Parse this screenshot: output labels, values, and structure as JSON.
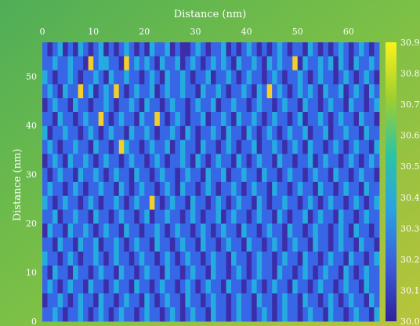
{
  "chart_data": {
    "type": "heatmap",
    "title": "",
    "xlabel": "Distance (nm)",
    "ylabel": "Distance (nm)",
    "xticks": [
      "0",
      "10",
      "20",
      "30",
      "40",
      "50",
      "60"
    ],
    "yticks": [
      "0",
      "10",
      "20",
      "30",
      "40",
      "50"
    ],
    "xlim": [
      0,
      66
    ],
    "ylim": [
      0,
      57
    ],
    "colorbar_ticks": [
      "30.0",
      "30.1",
      "30.2",
      "30.3",
      "30.4",
      "30.5",
      "30.6",
      "30.7",
      "30.8",
      "30.9"
    ],
    "colorbar_range": [
      30.0,
      30.9
    ],
    "colormap": "viridis-like (dark blue to yellow)",
    "grid": false,
    "values": [
      [
        1,
        0,
        1,
        2,
        0,
        1,
        0,
        2,
        1,
        0,
        1,
        2,
        0,
        1,
        0,
        1,
        2,
        1,
        0,
        1,
        0,
        2,
        1,
        1,
        2,
        0,
        1,
        0,
        0,
        1,
        2,
        1,
        0,
        1,
        1,
        2,
        0,
        1,
        0,
        1,
        2,
        1,
        0,
        1,
        0,
        1,
        2,
        1,
        0,
        1,
        1,
        0,
        2,
        1,
        0,
        1,
        0,
        1,
        2,
        1,
        0,
        1,
        2,
        1,
        0,
        1
      ],
      [
        1,
        1,
        2,
        1,
        1,
        2,
        1,
        1,
        0,
        3,
        1,
        2,
        2,
        1,
        1,
        0,
        3,
        1,
        2,
        1,
        2,
        1,
        0,
        2,
        1,
        1,
        2,
        0,
        1,
        2,
        1,
        0,
        1,
        2,
        1,
        2,
        1,
        0,
        2,
        1,
        1,
        2,
        1,
        0,
        2,
        1,
        2,
        1,
        1,
        3,
        0,
        2,
        1,
        1,
        2,
        1,
        2,
        0,
        2,
        1,
        0,
        2,
        1,
        1,
        2,
        1
      ],
      [
        2,
        1,
        0,
        1,
        1,
        2,
        1,
        0,
        1,
        1,
        2,
        1,
        0,
        2,
        1,
        1,
        2,
        1,
        1,
        0,
        1,
        2,
        1,
        0,
        2,
        1,
        1,
        2,
        1,
        0,
        1,
        1,
        2,
        0,
        1,
        1,
        2,
        1,
        0,
        1,
        2,
        1,
        1,
        0,
        1,
        2,
        1,
        0,
        1,
        1,
        2,
        1,
        0,
        1,
        2,
        1,
        1,
        0,
        1,
        2,
        1,
        0,
        1,
        2,
        1,
        0
      ],
      [
        1,
        2,
        1,
        0,
        2,
        1,
        1,
        3,
        1,
        2,
        0,
        1,
        2,
        1,
        3,
        1,
        0,
        1,
        2,
        1,
        1,
        2,
        0,
        1,
        2,
        1,
        1,
        2,
        1,
        1,
        0,
        2,
        1,
        1,
        2,
        1,
        0,
        1,
        1,
        2,
        1,
        0,
        2,
        1,
        3,
        1,
        2,
        1,
        0,
        1,
        2,
        1,
        2,
        1,
        0,
        2,
        1,
        1,
        2,
        0,
        1,
        2,
        1,
        0,
        2,
        1
      ],
      [
        0,
        1,
        2,
        1,
        1,
        0,
        2,
        1,
        1,
        0,
        1,
        1,
        2,
        1,
        0,
        1,
        1,
        2,
        1,
        0,
        2,
        1,
        1,
        0,
        1,
        2,
        1,
        1,
        0,
        1,
        2,
        1,
        1,
        2,
        0,
        1,
        1,
        2,
        1,
        1,
        0,
        1,
        2,
        1,
        1,
        0,
        1,
        2,
        1,
        1,
        0,
        2,
        1,
        1,
        0,
        1,
        2,
        1,
        1,
        0,
        2,
        1,
        1,
        0,
        1,
        2
      ],
      [
        1,
        1,
        0,
        2,
        1,
        1,
        0,
        1,
        2,
        1,
        1,
        3,
        1,
        0,
        1,
        2,
        1,
        1,
        0,
        2,
        1,
        1,
        3,
        1,
        0,
        1,
        2,
        1,
        0,
        1,
        1,
        2,
        0,
        1,
        1,
        2,
        1,
        0,
        2,
        1,
        1,
        2,
        1,
        0,
        1,
        2,
        1,
        1,
        0,
        1,
        2,
        0,
        1,
        1,
        2,
        1,
        0,
        1,
        2,
        1,
        1,
        0,
        2,
        1,
        1,
        0
      ],
      [
        2,
        0,
        1,
        1,
        2,
        1,
        1,
        0,
        1,
        2,
        1,
        0,
        1,
        2,
        1,
        1,
        0,
        2,
        1,
        1,
        2,
        1,
        0,
        1,
        1,
        2,
        1,
        0,
        2,
        1,
        0,
        1,
        1,
        2,
        1,
        0,
        2,
        1,
        1,
        0,
        2,
        1,
        0,
        1,
        2,
        1,
        0,
        1,
        2,
        1,
        1,
        2,
        0,
        1,
        1,
        2,
        0,
        1,
        1,
        2,
        1,
        1,
        0,
        2,
        1,
        1
      ],
      [
        1,
        2,
        1,
        0,
        1,
        1,
        2,
        1,
        1,
        0,
        2,
        1,
        1,
        0,
        1,
        3,
        2,
        1,
        1,
        0,
        1,
        2,
        1,
        1,
        2,
        0,
        1,
        2,
        1,
        1,
        0,
        2,
        1,
        1,
        0,
        1,
        2,
        1,
        0,
        1,
        1,
        2,
        0,
        1,
        1,
        2,
        1,
        0,
        1,
        2,
        1,
        0,
        2,
        1,
        1,
        0,
        1,
        2,
        1,
        0,
        1,
        2,
        1,
        1,
        0,
        2
      ],
      [
        0,
        1,
        2,
        1,
        0,
        2,
        1,
        1,
        2,
        1,
        0,
        1,
        2,
        1,
        1,
        0,
        1,
        2,
        1,
        1,
        0,
        1,
        2,
        1,
        0,
        1,
        1,
        2,
        1,
        0,
        2,
        1,
        0,
        1,
        2,
        1,
        1,
        0,
        2,
        1,
        0,
        1,
        2,
        1,
        1,
        0,
        2,
        1,
        1,
        0,
        1,
        1,
        2,
        0,
        1,
        2,
        1,
        1,
        0,
        1,
        2,
        1,
        0,
        1,
        2,
        1
      ],
      [
        1,
        0,
        1,
        2,
        1,
        1,
        0,
        2,
        1,
        1,
        2,
        1,
        0,
        1,
        2,
        1,
        1,
        0,
        2,
        1,
        1,
        0,
        1,
        2,
        1,
        1,
        0,
        1,
        2,
        1,
        1,
        0,
        2,
        1,
        1,
        2,
        0,
        1,
        1,
        2,
        1,
        1,
        0,
        2,
        1,
        1,
        0,
        1,
        2,
        1,
        1,
        0,
        1,
        2,
        1,
        1,
        0,
        2,
        1,
        1,
        0,
        1,
        2,
        1,
        1,
        0
      ],
      [
        1,
        2,
        1,
        1,
        0,
        1,
        2,
        1,
        0,
        1,
        1,
        2,
        1,
        1,
        0,
        2,
        1,
        0,
        1,
        2,
        1,
        1,
        0,
        1,
        2,
        1,
        0,
        2,
        1,
        1,
        0,
        1,
        2,
        1,
        0,
        1,
        1,
        2,
        1,
        0,
        1,
        2,
        1,
        1,
        0,
        2,
        1,
        1,
        0,
        1,
        2,
        1,
        1,
        0,
        2,
        1,
        1,
        0,
        1,
        2,
        1,
        1,
        0,
        2,
        1,
        1
      ],
      [
        2,
        1,
        0,
        1,
        2,
        1,
        1,
        0,
        1,
        2,
        1,
        0,
        1,
        1,
        2,
        1,
        0,
        1,
        2,
        1,
        1,
        3,
        1,
        0,
        1,
        2,
        1,
        1,
        0,
        2,
        1,
        1,
        0,
        1,
        2,
        1,
        0,
        1,
        2,
        1,
        1,
        0,
        2,
        1,
        0,
        1,
        1,
        2,
        1,
        1,
        0,
        1,
        2,
        1,
        0,
        1,
        2,
        1,
        1,
        0,
        1,
        2,
        1,
        0,
        1,
        2
      ],
      [
        1,
        1,
        2,
        0,
        1,
        1,
        2,
        1,
        1,
        0,
        2,
        1,
        1,
        0,
        1,
        2,
        1,
        1,
        0,
        1,
        2,
        0,
        1,
        1,
        2,
        1,
        1,
        0,
        1,
        2,
        1,
        0,
        1,
        1,
        2,
        0,
        1,
        2,
        1,
        1,
        0,
        1,
        2,
        1,
        1,
        0,
        2,
        1,
        0,
        1,
        1,
        2,
        0,
        1,
        2,
        1,
        1,
        0,
        2,
        1,
        1,
        0,
        1,
        2,
        1,
        1
      ],
      [
        0,
        2,
        1,
        1,
        0,
        2,
        1,
        1,
        2,
        1,
        0,
        1,
        2,
        1,
        1,
        0,
        2,
        1,
        1,
        0,
        1,
        1,
        2,
        1,
        0,
        1,
        2,
        1,
        1,
        0,
        1,
        2,
        1,
        0,
        1,
        2,
        1,
        1,
        0,
        2,
        1,
        1,
        0,
        1,
        2,
        1,
        1,
        0,
        2,
        1,
        1,
        0,
        1,
        2,
        1,
        1,
        0,
        1,
        2,
        1,
        0,
        2,
        1,
        1,
        0,
        1
      ],
      [
        1,
        1,
        0,
        2,
        1,
        1,
        0,
        2,
        1,
        1,
        2,
        0,
        1,
        1,
        2,
        1,
        0,
        1,
        2,
        1,
        1,
        0,
        2,
        1,
        1,
        0,
        1,
        2,
        1,
        1,
        0,
        2,
        1,
        1,
        0,
        1,
        2,
        1,
        1,
        0,
        2,
        1,
        1,
        0,
        1,
        2,
        1,
        0,
        1,
        2,
        1,
        1,
        0,
        2,
        1,
        1,
        0,
        1,
        2,
        1,
        1,
        0,
        2,
        1,
        1,
        0
      ],
      [
        2,
        1,
        1,
        0,
        1,
        2,
        1,
        0,
        1,
        1,
        2,
        1,
        0,
        1,
        2,
        1,
        1,
        0,
        1,
        2,
        1,
        1,
        0,
        1,
        2,
        1,
        0,
        1,
        2,
        1,
        1,
        0,
        1,
        2,
        1,
        1,
        0,
        2,
        1,
        1,
        0,
        1,
        2,
        1,
        1,
        0,
        1,
        2,
        1,
        1,
        0,
        2,
        1,
        1,
        0,
        1,
        2,
        1,
        1,
        0,
        2,
        1,
        1,
        0,
        1,
        2
      ],
      [
        1,
        0,
        2,
        1,
        1,
        0,
        2,
        1,
        1,
        0,
        1,
        2,
        1,
        1,
        0,
        2,
        1,
        1,
        0,
        1,
        2,
        1,
        1,
        0,
        2,
        1,
        1,
        0,
        1,
        2,
        1,
        1,
        0,
        2,
        1,
        1,
        0,
        1,
        2,
        1,
        0,
        1,
        2,
        1,
        1,
        0,
        2,
        1,
        1,
        0,
        1,
        2,
        1,
        0,
        1,
        2,
        1,
        1,
        0,
        2,
        1,
        0,
        1,
        2,
        1,
        1
      ],
      [
        1,
        2,
        1,
        0,
        1,
        2,
        1,
        1,
        0,
        2,
        1,
        1,
        0,
        1,
        2,
        1,
        1,
        0,
        2,
        1,
        1,
        0,
        1,
        2,
        1,
        1,
        0,
        1,
        2,
        1,
        0,
        1,
        2,
        1,
        1,
        0,
        2,
        1,
        1,
        0,
        1,
        2,
        1,
        0,
        1,
        2,
        1,
        1,
        0,
        2,
        1,
        1,
        0,
        1,
        2,
        1,
        1,
        0,
        1,
        2,
        1,
        1,
        0,
        2,
        1,
        1
      ],
      [
        0,
        1,
        1,
        2,
        1,
        0,
        1,
        2,
        1,
        1,
        0,
        2,
        1,
        1,
        0,
        1,
        2,
        1,
        1,
        0,
        2,
        1,
        0,
        1,
        2,
        1,
        1,
        0,
        2,
        1,
        1,
        0,
        1,
        2,
        1,
        1,
        0,
        1,
        2,
        1,
        1,
        0,
        2,
        1,
        1,
        0,
        1,
        2,
        1,
        1,
        0,
        2,
        1,
        1,
        0,
        1,
        2,
        1,
        0,
        1,
        2,
        1,
        1,
        0,
        2,
        1
      ],
      [
        1,
        1,
        2,
        1,
        0,
        1,
        1,
        2,
        1,
        0,
        1,
        2,
        1,
        0,
        1,
        2,
        1,
        1,
        0,
        1,
        2,
        1,
        1,
        0,
        1,
        2,
        1,
        0,
        1,
        2,
        1,
        1,
        0,
        2,
        1,
        1,
        0,
        1,
        2,
        1,
        1,
        0,
        1,
        2,
        1,
        0,
        1,
        2,
        1,
        1,
        0,
        1,
        2,
        1,
        1,
        0,
        2,
        1,
        1,
        0,
        1,
        2,
        1,
        1,
        0,
        2
      ]
    ]
  }
}
